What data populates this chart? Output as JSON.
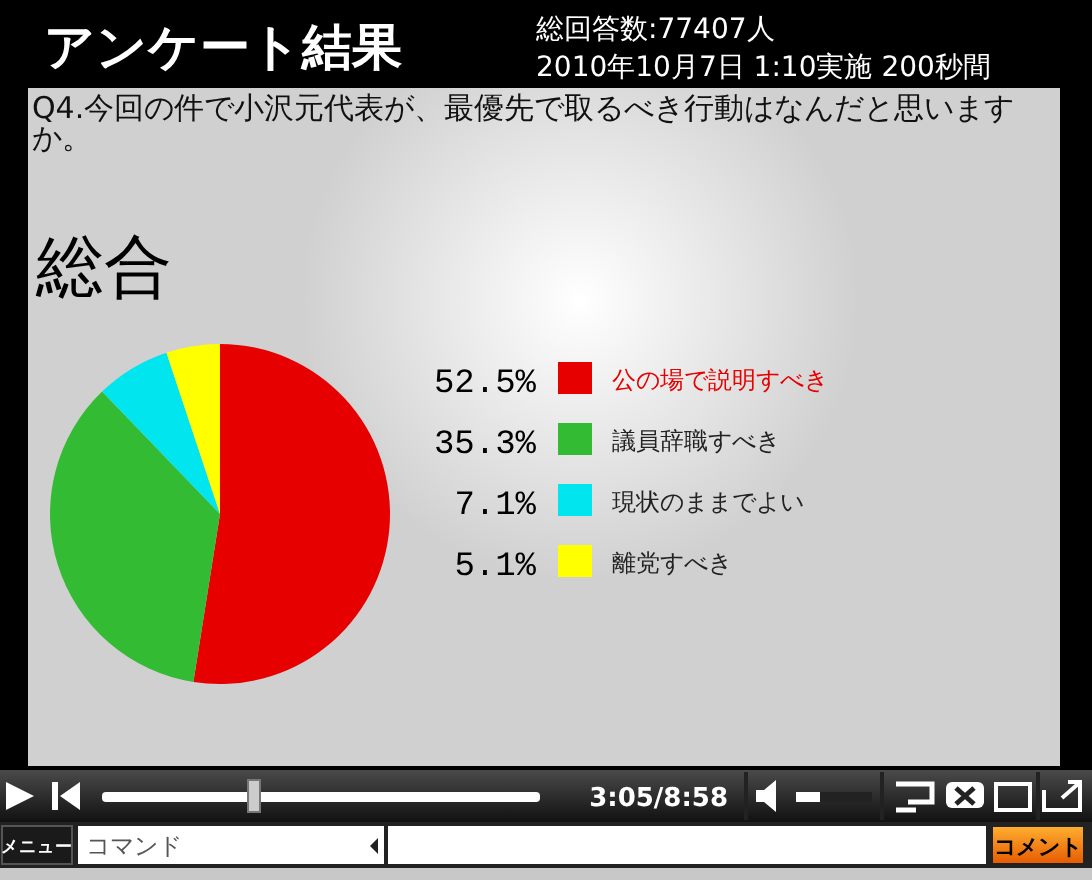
{
  "chart_data": {
    "type": "pie",
    "title": "アンケート結果",
    "subtitle": "Q4.今回の件で小沢元代表が、最優先で取るべき行動はなんだと思いますか。",
    "categories": [
      "公の場で説明すべき",
      "議員辞職すべき",
      "現状のままでよい",
      "離党すべき"
    ],
    "values": [
      52.5,
      35.3,
      7.1,
      5.1
    ],
    "colors": [
      "#e60000",
      "#33bb33",
      "#00e5ee",
      "#ffff00"
    ],
    "value_labels": [
      "52.5%",
      "35.3%",
      "7.1%",
      "5.1%"
    ],
    "legend": "right",
    "annotations": [
      "総回答数:77407人",
      "2010年10月7日 1:10実施 200秒間",
      "総合",
      "3:05/8:58",
      "メニュー",
      "コマンド",
      "コメント"
    ]
  }
}
